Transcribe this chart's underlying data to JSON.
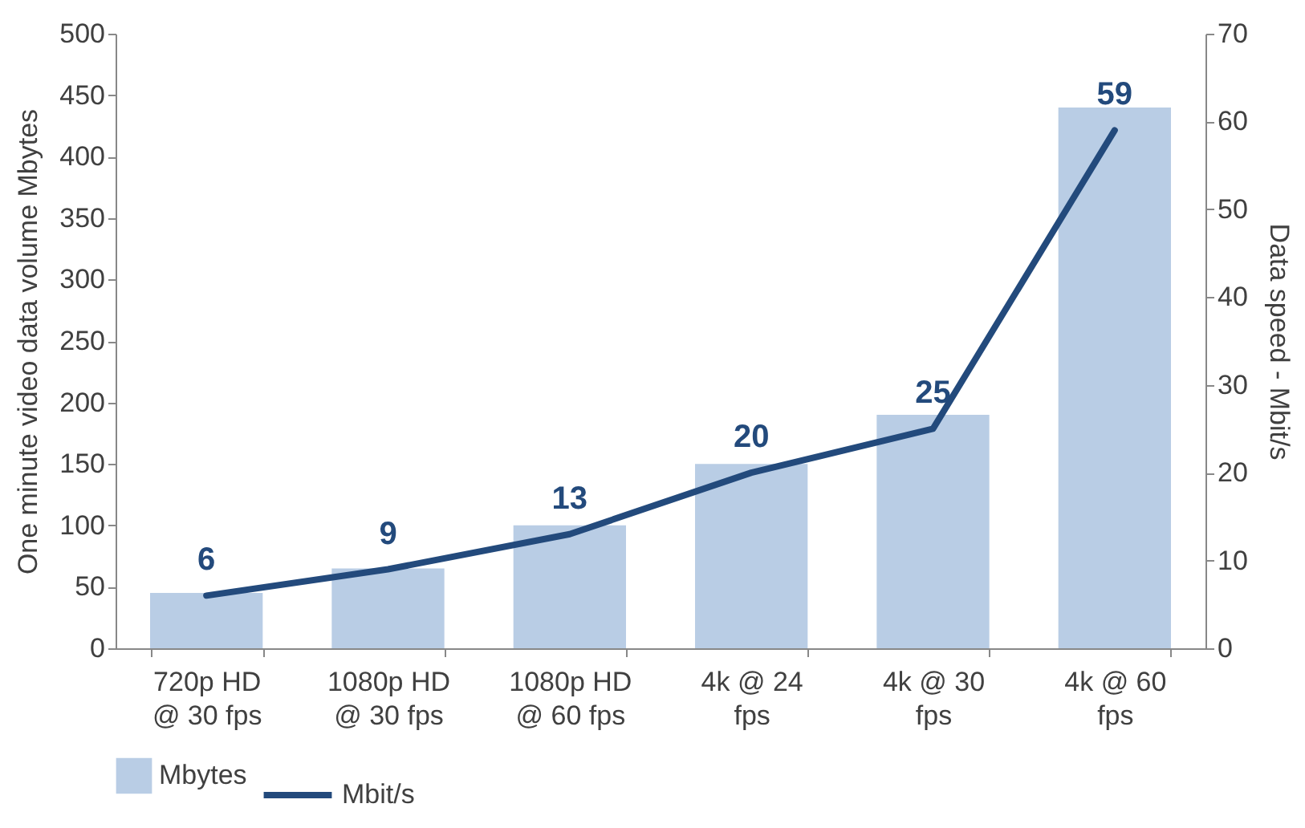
{
  "chart_data": {
    "type": "bar",
    "ylabel": "One minute video data volume Mbytes",
    "y2label": "Data speed - Mbit/s",
    "categories": [
      "720p HD @ 30 fps",
      "1080p HD @ 30 fps",
      "1080p HD @ 60 fps",
      "4k @ 24 fps",
      "4k @ 30 fps",
      "4k @ 60 fps"
    ],
    "series": [
      {
        "name": "Mbytes",
        "color": "#b9cde5",
        "values": [
          45,
          65,
          100,
          150,
          190,
          440
        ]
      },
      {
        "name": "Mbit/s",
        "type": "line",
        "axis": "y2",
        "color": "#234a7c",
        "values": [
          6,
          9,
          13,
          20,
          25,
          59
        ],
        "data_labels": true
      }
    ],
    "ylim": [
      0,
      500
    ],
    "yticks": [
      0,
      50,
      100,
      150,
      200,
      250,
      300,
      350,
      400,
      450,
      500
    ],
    "y2lim": [
      0,
      70
    ],
    "y2ticks": [
      0,
      10,
      20,
      30,
      40,
      50,
      60,
      70
    ],
    "grid": false,
    "legend": "bottom"
  }
}
